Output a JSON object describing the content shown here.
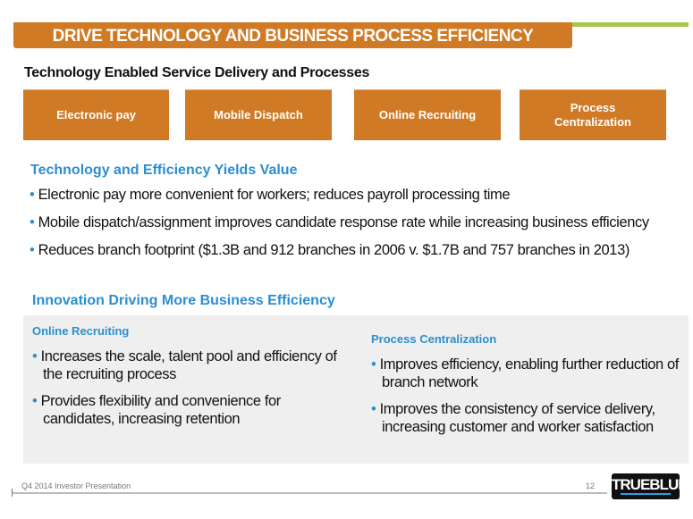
{
  "title": "DRIVE TECHNOLOGY AND BUSINESS PROCESS EFFICIENCY",
  "subtitle": "Technology Enabled Service Delivery and Processes",
  "boxes": [
    "Electronic pay",
    "Mobile Dispatch",
    "Online Recruiting",
    "Process Centralization"
  ],
  "section1": {
    "heading": "Technology and Efficiency Yields Value",
    "bullets": [
      "Electronic pay more convenient for workers; reduces payroll processing time",
      "Mobile dispatch/assignment improves candidate response rate while increasing business efficiency",
      "Reduces branch footprint ($1.3B and 912 branches in 2006 v. $1.7B and 757 branches in 2013)"
    ]
  },
  "section2": {
    "heading": "Innovation Driving More Business Efficiency",
    "left": {
      "heading": "Online Recruiting",
      "bullets": [
        "Increases the scale, talent pool and efficiency of the recruiting process",
        "Provides flexibility and convenience for candidates, increasing retention"
      ]
    },
    "right": {
      "heading": "Process Centralization",
      "bullets": [
        "Improves efficiency, enabling further reduction of branch network",
        "Improves the consistency of service delivery, increasing customer and worker satisfaction"
      ]
    }
  },
  "footer": {
    "text": "Q4 2014 Investor Presentation",
    "page": "12",
    "logo": "TRUEBLUE"
  },
  "colors": {
    "orange": "#d07a25",
    "blue": "#2b8ed0",
    "green": "#a6c64b"
  },
  "bullet_char": "•"
}
